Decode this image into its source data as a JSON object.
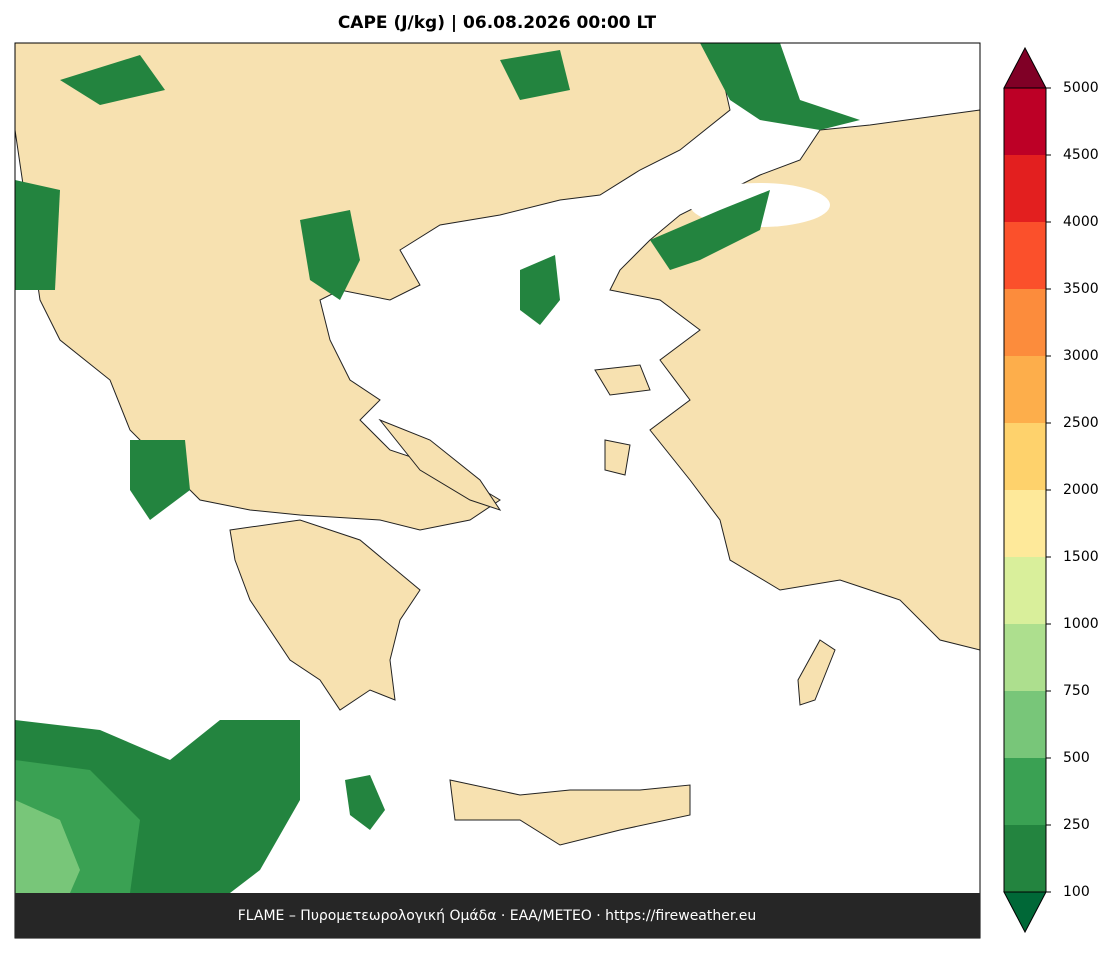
{
  "title": "CAPE (J/kg)  |  06.08.2026 00:00 LT",
  "colorbar": {
    "ticks": [
      100,
      250,
      500,
      750,
      1000,
      1500,
      2000,
      2500,
      3000,
      3500,
      4000,
      4500,
      5000
    ],
    "colors": [
      "#23843f",
      "#3aa153",
      "#78c679",
      "#addf8e",
      "#d9ef9b",
      "#fee99a",
      "#fed26c",
      "#fdae4b",
      "#fc8c3c",
      "#fb502b",
      "#e31f1f",
      "#bd0026"
    ],
    "under_color": "#006837",
    "over_color": "#800026"
  },
  "footer": "FLAME – Πυρομετεωρολογική Ομάδα · ΕΑΑ/METEO · https://fireweather.eu"
}
